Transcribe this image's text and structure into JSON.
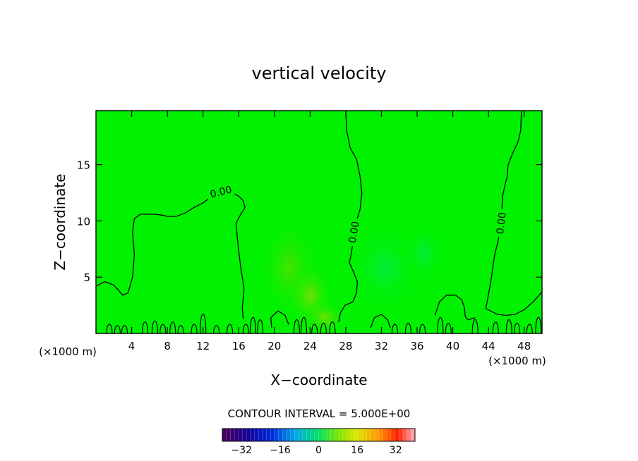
{
  "chart_data": {
    "type": "heatmap",
    "title": "vertical velocity",
    "xlabel": "X−coordinate",
    "ylabel": "Z−coordinate",
    "x_unit_left": "(×1000 m)",
    "x_unit_right": "(×1000 m)",
    "xlim": [
      0,
      50
    ],
    "ylim": [
      0,
      19.8
    ],
    "x_ticks": [
      4,
      8,
      12,
      16,
      20,
      24,
      28,
      32,
      36,
      40,
      44,
      48
    ],
    "x_tick_labels": [
      "4",
      "8",
      "12",
      "16",
      "20",
      "24",
      "28",
      "32",
      "36",
      "40",
      "44",
      "48"
    ],
    "y_ticks": [
      5,
      10,
      15
    ],
    "y_tick_labels": [
      "5",
      "10",
      "15"
    ],
    "background_value": 0,
    "background_color": "#00f200",
    "contour_label": "0.00",
    "contour_interval_text": "CONTOUR INTERVAL = 5.000E+00",
    "colorbar": {
      "min": -40,
      "max": 40,
      "ticks": [
        -32,
        -16,
        0,
        16,
        32
      ],
      "tick_labels": [
        "−32",
        "−16",
        "0",
        "16",
        "32"
      ]
    },
    "zero_contours": [
      {
        "label": "0.00",
        "points": [
          [
            0,
            4.2
          ],
          [
            1,
            4.6
          ],
          [
            2,
            4.3
          ],
          [
            3,
            3.4
          ],
          [
            3.6,
            3.6
          ],
          [
            4.1,
            5
          ],
          [
            4.3,
            7
          ],
          [
            4.1,
            9
          ],
          [
            4.3,
            10.2
          ],
          [
            5,
            10.6
          ],
          [
            6.5,
            10.6
          ],
          [
            7.5,
            10.5
          ],
          [
            8,
            10.4
          ],
          [
            9,
            10.4
          ],
          [
            10,
            10.7
          ],
          [
            11,
            11.2
          ],
          [
            12,
            11.6
          ],
          [
            13,
            12.2
          ],
          [
            14,
            12.6
          ],
          [
            15,
            12.6
          ],
          [
            16,
            12.2
          ],
          [
            16.5,
            11.8
          ],
          [
            16.7,
            11.2
          ],
          [
            16.1,
            10.4
          ],
          [
            15.7,
            9.8
          ],
          [
            15.9,
            8
          ],
          [
            16.2,
            6
          ],
          [
            16.6,
            4
          ],
          [
            16.4,
            2.2
          ],
          [
            16.5,
            1.3
          ]
        ]
      },
      {
        "label": "0.00",
        "points": [
          [
            28,
            19.8
          ],
          [
            28.1,
            18
          ],
          [
            28.5,
            16.5
          ],
          [
            29.2,
            15.5
          ],
          [
            29.6,
            14
          ],
          [
            29.8,
            12.5
          ],
          [
            29.6,
            11
          ],
          [
            29.2,
            10
          ],
          [
            28.9,
            9
          ],
          [
            28.8,
            8
          ],
          [
            28.6,
            7
          ],
          [
            28.4,
            6.3
          ],
          [
            28.9,
            5.4
          ],
          [
            29.3,
            4.6
          ],
          [
            29.2,
            3.6
          ],
          [
            28.8,
            2.8
          ],
          [
            27.9,
            2.5
          ],
          [
            27.4,
            1.8
          ],
          [
            27.2,
            1
          ]
        ]
      },
      {
        "label": "0.00",
        "points": [
          [
            47.7,
            19.8
          ],
          [
            47.6,
            18
          ],
          [
            47.3,
            17
          ],
          [
            46.7,
            16
          ],
          [
            46.2,
            15
          ],
          [
            46.1,
            14
          ],
          [
            45.8,
            13
          ],
          [
            45.6,
            12.3
          ],
          [
            45.5,
            11
          ],
          [
            45.4,
            9.8
          ],
          [
            45.1,
            8.3
          ],
          [
            44.7,
            7
          ],
          [
            44.5,
            6
          ],
          [
            44.3,
            4.8
          ],
          [
            44,
            3.5
          ],
          [
            43.7,
            2.2
          ],
          [
            45,
            1.7
          ],
          [
            46,
            1.6
          ],
          [
            47,
            1.7
          ],
          [
            48,
            2.1
          ],
          [
            49,
            2.8
          ],
          [
            50,
            3.7
          ]
        ]
      },
      {
        "label": "",
        "points": [
          [
            38,
            1.6
          ],
          [
            38.5,
            2.8
          ],
          [
            39.3,
            3.4
          ],
          [
            40.3,
            3.4
          ],
          [
            41,
            3.0
          ],
          [
            41.3,
            2.3
          ],
          [
            41.4,
            1.5
          ],
          [
            41.7,
            1.2
          ],
          [
            42.5,
            1.4
          ]
        ]
      },
      {
        "label": "",
        "points": [
          [
            19.7,
            0.5
          ],
          [
            19.6,
            1.4
          ],
          [
            20.4,
            2.0
          ],
          [
            21.2,
            1.6
          ],
          [
            21.6,
            0.8
          ]
        ]
      },
      {
        "label": "",
        "points": [
          [
            30.8,
            0.5
          ],
          [
            31.2,
            1.4
          ],
          [
            32,
            1.7
          ],
          [
            32.7,
            1.2
          ],
          [
            33,
            0.5
          ]
        ]
      }
    ]
  }
}
